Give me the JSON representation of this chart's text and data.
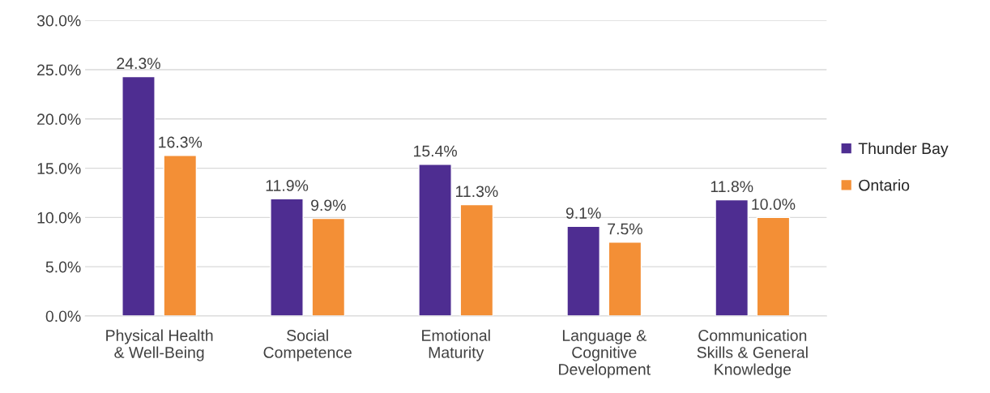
{
  "chart_data": {
    "type": "bar",
    "categories": [
      "Physical Health\n& Well-Being",
      "Social\nCompetence",
      "Emotional\nMaturity",
      "Language &\nCognitive\nDevelopment",
      "Communication\nSkills & General\nKnowledge"
    ],
    "series": [
      {
        "name": "Thunder Bay",
        "color": "#4e2d91",
        "values": [
          24.3,
          11.9,
          15.4,
          9.1,
          11.8
        ],
        "value_labels": [
          "24.3%",
          "11.9%",
          "15.4%",
          "9.1%",
          "11.8%"
        ]
      },
      {
        "name": "Ontario",
        "color": "#f38f36",
        "values": [
          16.3,
          9.9,
          11.3,
          7.5,
          10.0
        ],
        "value_labels": [
          "16.3%",
          "9.9%",
          "11.3%",
          "7.5%",
          "10.0%"
        ]
      }
    ],
    "ylim": [
      0,
      30
    ],
    "yticks": [
      {
        "value": 0,
        "label": "0.0%"
      },
      {
        "value": 5,
        "label": "5.0%"
      },
      {
        "value": 10,
        "label": "10.0%"
      },
      {
        "value": 15,
        "label": "15.0%"
      },
      {
        "value": 20,
        "label": "20.0%"
      },
      {
        "value": 25,
        "label": "25.0%"
      },
      {
        "value": 30,
        "label": "30.0%"
      }
    ],
    "grid": "y",
    "legend": "right"
  }
}
